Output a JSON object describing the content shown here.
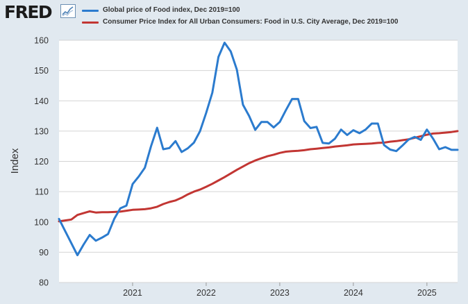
{
  "brand": {
    "name": "FRED",
    "icon": "fred-line-chart-icon"
  },
  "chart_data": {
    "type": "line",
    "title": "",
    "xlabel": "",
    "ylabel": "Index",
    "ylim": [
      80,
      160
    ],
    "yticks": [
      80,
      90,
      100,
      110,
      120,
      130,
      140,
      150,
      160
    ],
    "xlim": [
      "2020-01",
      "2025-06"
    ],
    "xticks": [
      "2021",
      "2022",
      "2023",
      "2024",
      "2025"
    ],
    "grid": "horizontal",
    "legend": "top-left",
    "series": [
      {
        "name": "Global price of Food index, Dec 2019=100",
        "color": "#2b7bce",
        "x": [
          "2020-01",
          "2020-02",
          "2020-03",
          "2020-04",
          "2020-05",
          "2020-06",
          "2020-07",
          "2020-08",
          "2020-09",
          "2020-10",
          "2020-11",
          "2020-12",
          "2021-01",
          "2021-02",
          "2021-03",
          "2021-04",
          "2021-05",
          "2021-06",
          "2021-07",
          "2021-08",
          "2021-09",
          "2021-10",
          "2021-11",
          "2021-12",
          "2022-01",
          "2022-02",
          "2022-03",
          "2022-04",
          "2022-05",
          "2022-06",
          "2022-07",
          "2022-08",
          "2022-09",
          "2022-10",
          "2022-11",
          "2022-12",
          "2023-01",
          "2023-02",
          "2023-03",
          "2023-04",
          "2023-05",
          "2023-06",
          "2023-07",
          "2023-08",
          "2023-09",
          "2023-10",
          "2023-11",
          "2023-12",
          "2024-01",
          "2024-02",
          "2024-03",
          "2024-04",
          "2024-05",
          "2024-06",
          "2024-07",
          "2024-08",
          "2024-09",
          "2024-10",
          "2024-11",
          "2024-12",
          "2025-01",
          "2025-02",
          "2025-03",
          "2025-04",
          "2025-05",
          "2025-06"
        ],
        "values": [
          101,
          97,
          93,
          89,
          92.5,
          95.7,
          93.8,
          94.8,
          96,
          101,
          104.5,
          105.4,
          112.5,
          115,
          117.9,
          125,
          131.1,
          124,
          124.4,
          126.7,
          123.1,
          124.3,
          126.2,
          130,
          136,
          142.7,
          154.5,
          159.2,
          156.3,
          150.3,
          138.7,
          135,
          130.4,
          133,
          133,
          131.2,
          133,
          136.9,
          140.6,
          140.6,
          133.3,
          131,
          131.4,
          126.1,
          125.9,
          127.5,
          130.5,
          128.7,
          130.3,
          129.3,
          130.5,
          132.5,
          132.5,
          125.4,
          123.9,
          123.4,
          125.2,
          127.2,
          128.1,
          127.1,
          130.5,
          127.5,
          124,
          124.7,
          123.8,
          123.8
        ]
      },
      {
        "name": "Consumer Price Index for All Urban Consumers: Food in U.S. City Average, Dec 2019=100",
        "color": "#c23633",
        "x": [
          "2020-01",
          "2020-02",
          "2020-03",
          "2020-04",
          "2020-05",
          "2020-06",
          "2020-07",
          "2020-08",
          "2020-09",
          "2020-10",
          "2020-11",
          "2020-12",
          "2021-01",
          "2021-02",
          "2021-03",
          "2021-04",
          "2021-05",
          "2021-06",
          "2021-07",
          "2021-08",
          "2021-09",
          "2021-10",
          "2021-11",
          "2021-12",
          "2022-01",
          "2022-02",
          "2022-03",
          "2022-04",
          "2022-05",
          "2022-06",
          "2022-07",
          "2022-08",
          "2022-09",
          "2022-10",
          "2022-11",
          "2022-12",
          "2023-01",
          "2023-02",
          "2023-03",
          "2023-04",
          "2023-05",
          "2023-06",
          "2023-07",
          "2023-08",
          "2023-09",
          "2023-10",
          "2023-11",
          "2023-12",
          "2024-01",
          "2024-02",
          "2024-03",
          "2024-04",
          "2024-05",
          "2024-06",
          "2024-07",
          "2024-08",
          "2024-09",
          "2024-10",
          "2024-11",
          "2024-12",
          "2025-01",
          "2025-02",
          "2025-03",
          "2025-04",
          "2025-05",
          "2025-06"
        ],
        "values": [
          100.2,
          100.5,
          100.8,
          102.3,
          102.9,
          103.5,
          103.1,
          103.2,
          103.2,
          103.3,
          103.4,
          103.7,
          104,
          104.1,
          104.2,
          104.5,
          105,
          105.9,
          106.6,
          107.1,
          108,
          109.1,
          110,
          110.7,
          111.6,
          112.6,
          113.7,
          114.8,
          116,
          117.2,
          118.3,
          119.4,
          120.3,
          121,
          121.7,
          122.2,
          122.8,
          123.2,
          123.4,
          123.5,
          123.7,
          124,
          124.2,
          124.4,
          124.6,
          124.9,
          125.1,
          125.3,
          125.6,
          125.7,
          125.8,
          125.9,
          126.1,
          126.2,
          126.5,
          126.7,
          127,
          127.3,
          127.8,
          128.3,
          128.8,
          129.2,
          129.3,
          129.5,
          129.7,
          130
        ]
      }
    ]
  }
}
